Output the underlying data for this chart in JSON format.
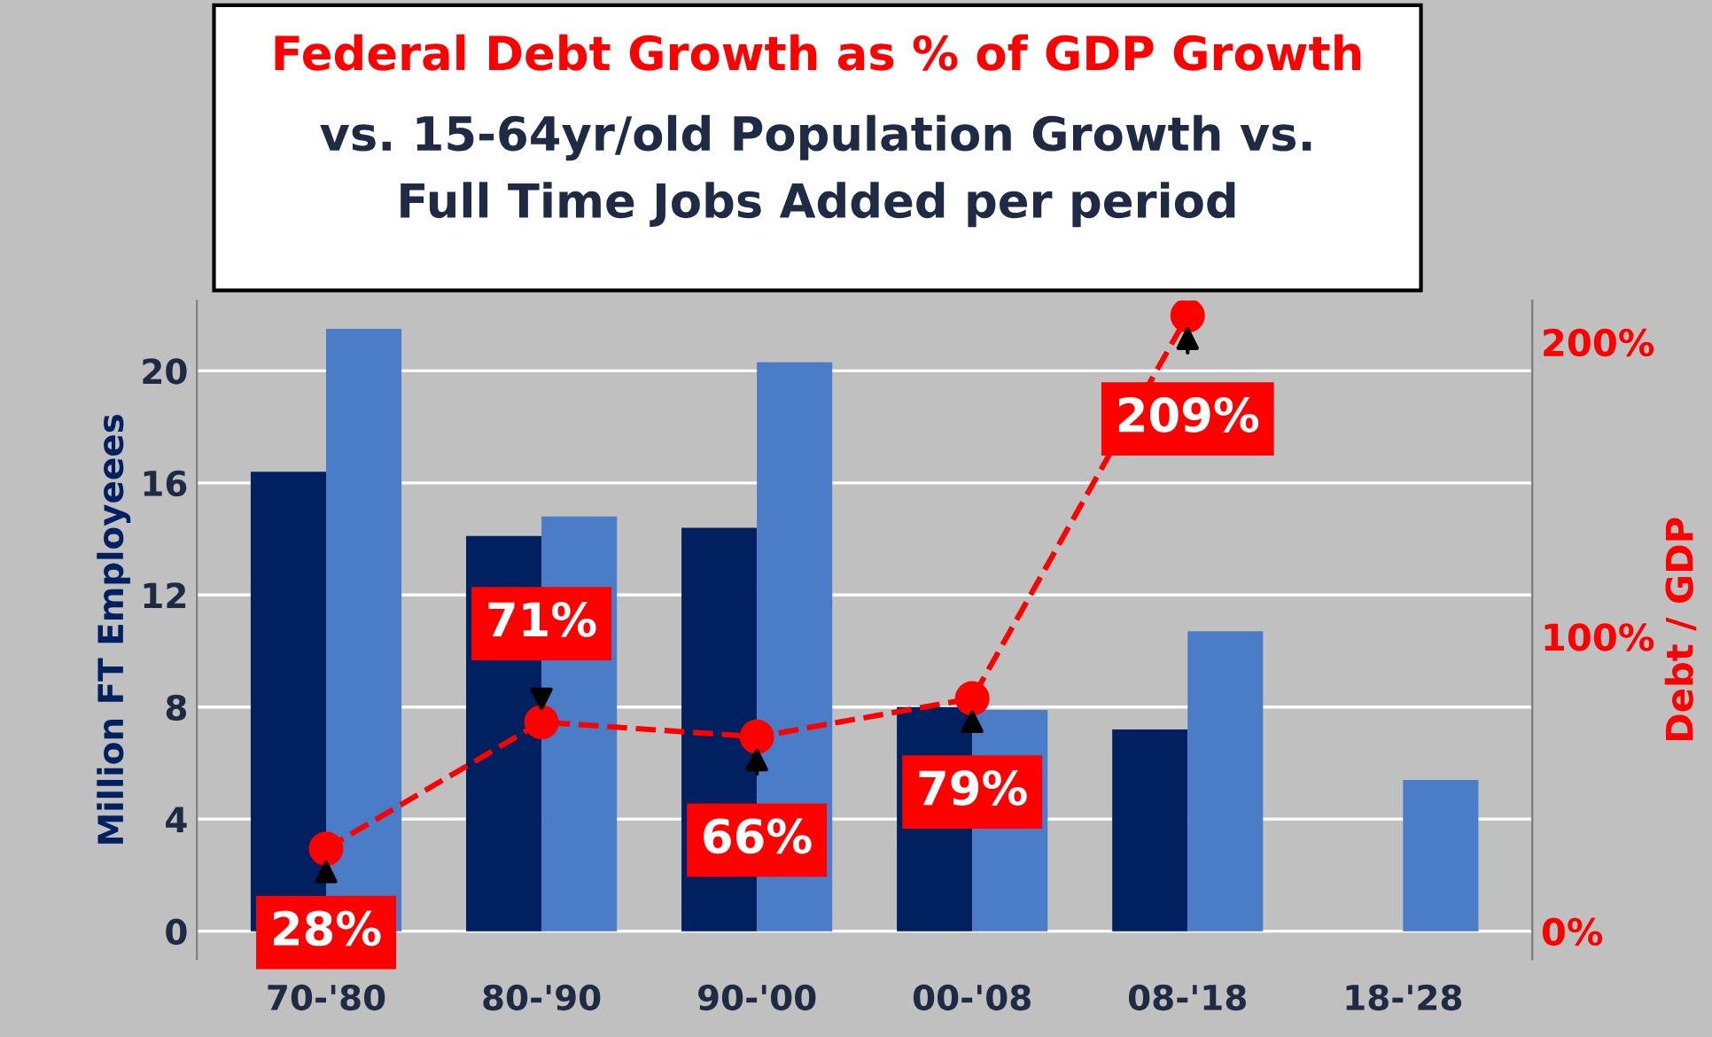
{
  "chart_data": {
    "type": "bar",
    "title": "Federal Debt Growth as % of GDP Growth",
    "subtitle": "vs. 15-64yr/old Population Growth vs.\nFull Time Jobs Added per period",
    "ylabel": "Million FT Employeees",
    "y2label": "Debt / GDP",
    "categories": [
      "70-'80",
      "80-'90",
      "90-'00",
      "00-'08",
      "08-'18",
      "18-'28"
    ],
    "series": [
      {
        "color": "#002060",
        "values": [
          16.4,
          14.1,
          14.4,
          8.0,
          7.2,
          null
        ]
      },
      {
        "color": "#4a7cc7",
        "values": [
          21.5,
          14.8,
          20.3,
          7.9,
          10.7,
          5.4
        ]
      },
      {
        "type": "line",
        "axis": "y2",
        "color": "#ff0000",
        "values": [
          28,
          71,
          66,
          79,
          209,
          null
        ],
        "value_labels": [
          "28%",
          "71%",
          "66%",
          "79%",
          "209%",
          null
        ],
        "marker": "circle",
        "line_style": "dashed"
      }
    ],
    "ylim": [
      -1,
      22.5
    ],
    "yticks": [
      0,
      4,
      8,
      12,
      16,
      20
    ],
    "y2lim": [
      -9.5,
      214
    ],
    "y2ticks": [
      {
        "value": 0,
        "label": "0%"
      },
      {
        "value": 100,
        "label": "100%"
      },
      {
        "value": 200,
        "label": "200%"
      }
    ],
    "grid": "y",
    "legend": false
  }
}
